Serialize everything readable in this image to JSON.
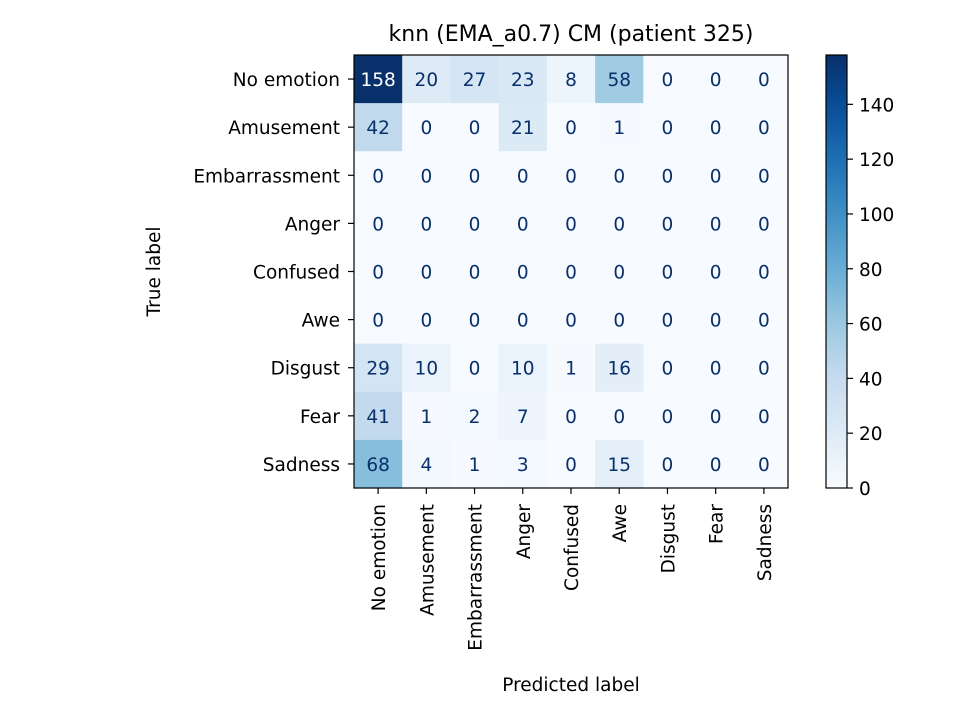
{
  "chart_data": {
    "type": "heatmap",
    "title": "knn (EMA_a0.7) CM (patient 325)",
    "xlabel": "Predicted label",
    "ylabel": "True label",
    "row_labels": [
      "No emotion",
      "Amusement",
      "Embarrassment",
      "Anger",
      "Confused",
      "Awe",
      "Disgust",
      "Fear",
      "Sadness"
    ],
    "col_labels": [
      "No emotion",
      "Amusement",
      "Embarrassment",
      "Anger",
      "Confused",
      "Awe",
      "Disgust",
      "Fear",
      "Sadness"
    ],
    "values": [
      [
        158,
        20,
        27,
        23,
        8,
        58,
        0,
        0,
        0
      ],
      [
        42,
        0,
        0,
        21,
        0,
        1,
        0,
        0,
        0
      ],
      [
        0,
        0,
        0,
        0,
        0,
        0,
        0,
        0,
        0
      ],
      [
        0,
        0,
        0,
        0,
        0,
        0,
        0,
        0,
        0
      ],
      [
        0,
        0,
        0,
        0,
        0,
        0,
        0,
        0,
        0
      ],
      [
        0,
        0,
        0,
        0,
        0,
        0,
        0,
        0,
        0
      ],
      [
        29,
        10,
        0,
        10,
        1,
        16,
        0,
        0,
        0
      ],
      [
        41,
        1,
        2,
        7,
        0,
        0,
        0,
        0,
        0
      ],
      [
        68,
        4,
        1,
        3,
        0,
        15,
        0,
        0,
        0
      ]
    ],
    "colormap": "Blues",
    "color_min": "#f7fbff",
    "color_max": "#08306b",
    "vmin": 0,
    "vmax": 158,
    "colorbar_ticks": [
      0,
      20,
      40,
      60,
      80,
      100,
      120,
      140
    ],
    "grid": false
  }
}
